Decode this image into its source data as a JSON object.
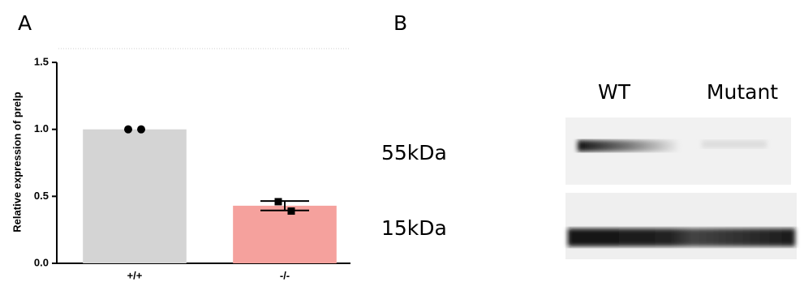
{
  "panel_labels": [
    "A",
    "B"
  ],
  "chart_data": {
    "type": "bar",
    "ylabel": "Relative expression of prelp",
    "categories": [
      "+/+",
      "-/-"
    ],
    "values": [
      1.0,
      0.43
    ],
    "colors": [
      "#d4d4d4",
      "#f5a19d"
    ],
    "errors": [
      null,
      0.035
    ],
    "points": [
      [
        1.0,
        1.0
      ],
      [
        0.46,
        0.39
      ]
    ],
    "ylim": [
      0,
      1.5
    ],
    "yticks": [
      {
        "value": 0,
        "label": "0.0"
      },
      0.5,
      {
        "value": 1,
        "label": "1.0"
      },
      1.5
    ]
  },
  "blot": {
    "lanes": [
      "WT",
      "Mutant"
    ],
    "bands": [
      "55kDa",
      "15kDa"
    ]
  }
}
